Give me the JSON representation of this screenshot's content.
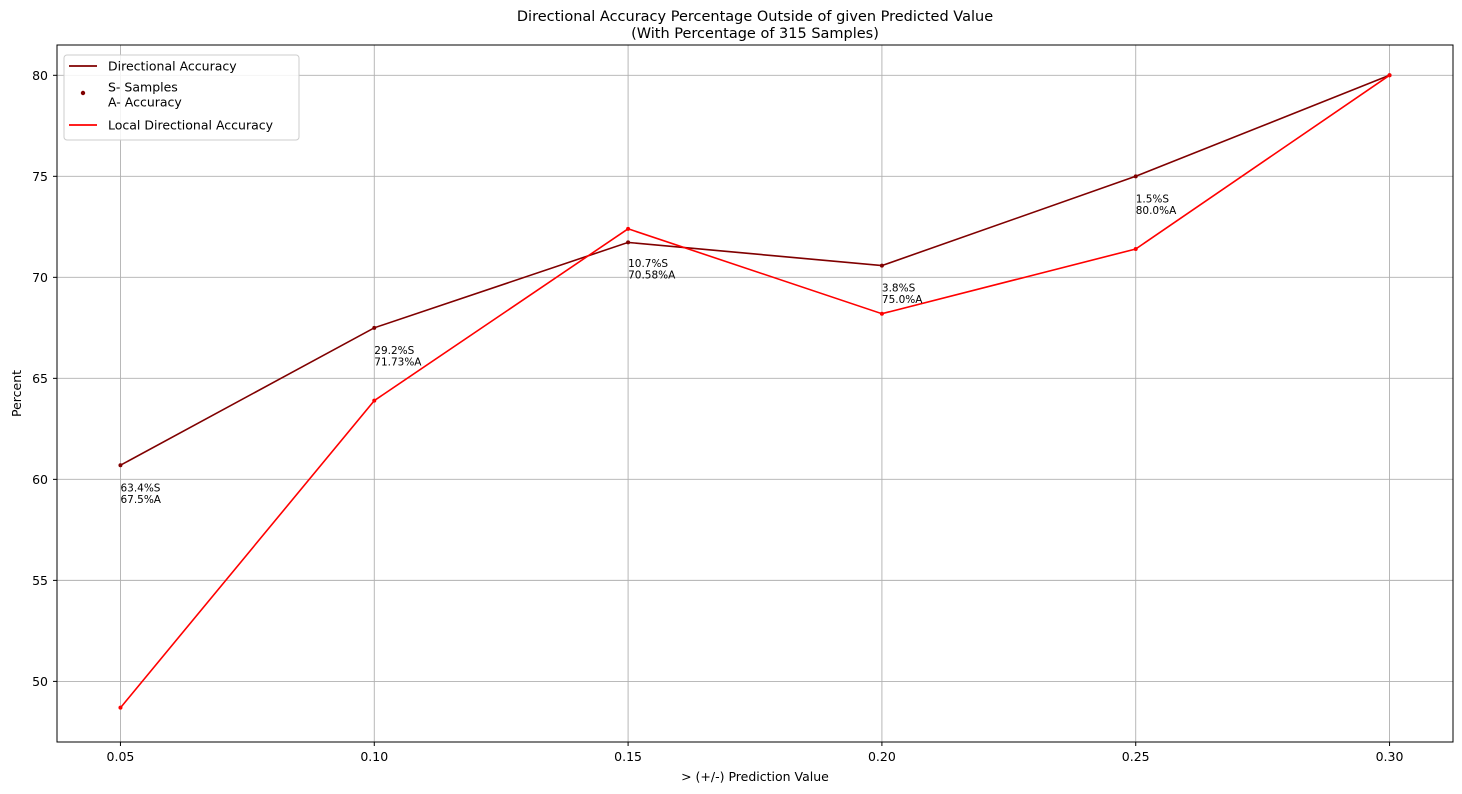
{
  "chart_data": {
    "type": "line",
    "title_lines": [
      "Directional Accuracy Percentage Outside of given Predicted Value",
      "(With Percentage of 315 Samples)"
    ],
    "xlabel": "> (+/-) Prediction Value",
    "ylabel": "Percent",
    "x": [
      0.05,
      0.1,
      0.15,
      0.2,
      0.25,
      0.3
    ],
    "x_tick_labels": [
      "0.05",
      "0.10",
      "0.15",
      "0.20",
      "0.25",
      "0.30"
    ],
    "y_ticks": [
      50,
      55,
      60,
      65,
      70,
      75,
      80
    ],
    "y_tick_labels": [
      "50",
      "55",
      "60",
      "65",
      "70",
      "75",
      "80"
    ],
    "xlim": [
      0.0375,
      0.3125
    ],
    "ylim": [
      47.0,
      81.5
    ],
    "grid": true,
    "legend_position": "top-left",
    "series": [
      {
        "name": "Directional Accuracy",
        "color": "#800000",
        "values": [
          60.7,
          67.5,
          71.73,
          70.58,
          75.0,
          80.0
        ]
      },
      {
        "name": "Local Directional Accuracy",
        "color": "#ff0000",
        "values": [
          48.7,
          63.9,
          72.4,
          68.2,
          71.4,
          80.0
        ]
      }
    ],
    "legend": [
      {
        "kind": "line",
        "color": "#800000",
        "lines": [
          "Directional Accuracy"
        ]
      },
      {
        "kind": "dot",
        "color": "#800000",
        "lines": [
          "S- Samples",
          "A- Accuracy"
        ]
      },
      {
        "kind": "line",
        "color": "#ff0000",
        "lines": [
          "Local Directional Accuracy"
        ]
      }
    ],
    "annotations": [
      {
        "x": 0.05,
        "y": 59.4,
        "lines": [
          "63.4%S",
          "67.5%A"
        ]
      },
      {
        "x": 0.1,
        "y": 66.2,
        "lines": [
          "29.2%S",
          "71.73%A"
        ]
      },
      {
        "x": 0.15,
        "y": 70.5,
        "lines": [
          "10.7%S",
          "70.58%A"
        ]
      },
      {
        "x": 0.2,
        "y": 69.3,
        "lines": [
          "3.8%S",
          "75.0%A"
        ]
      },
      {
        "x": 0.25,
        "y": 73.7,
        "lines": [
          "1.5%S",
          "80.0%A"
        ]
      }
    ]
  }
}
